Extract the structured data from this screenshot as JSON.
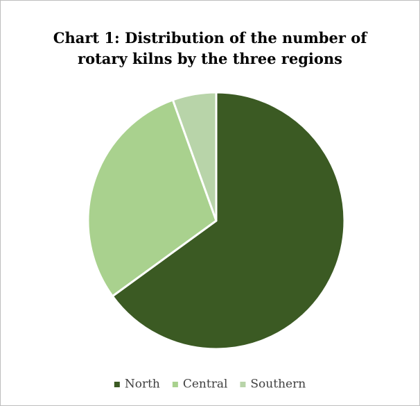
{
  "chart_data": {
    "type": "pie",
    "title": "Chart 1: Distribution of the number of rotary kilns by the three regions",
    "categories": [
      "North",
      "Central",
      "Southern"
    ],
    "values": [
      65,
      29.5,
      5.5
    ],
    "colors": [
      "#3b5a23",
      "#a9d18e",
      "#b8d4a9"
    ],
    "legend": "bottom"
  }
}
